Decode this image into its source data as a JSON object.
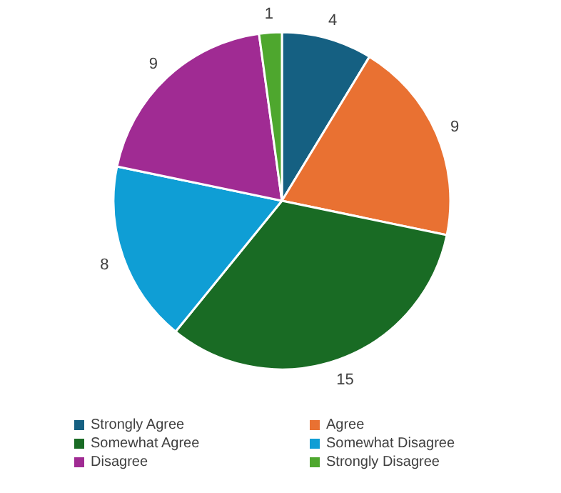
{
  "chart_data": {
    "type": "pie",
    "categories": [
      "Strongly Agree",
      "Agree",
      "Somewhat Agree",
      "Somewhat Disagree",
      "Disagree",
      "Strongly Disagree"
    ],
    "values": [
      4,
      9,
      15,
      8,
      9,
      1
    ],
    "colors": [
      "#156082",
      "#e97132",
      "#196b24",
      "#0f9ed5",
      "#a02b93",
      "#4ea72e"
    ],
    "data_labels": true,
    "legend": "bottom"
  }
}
